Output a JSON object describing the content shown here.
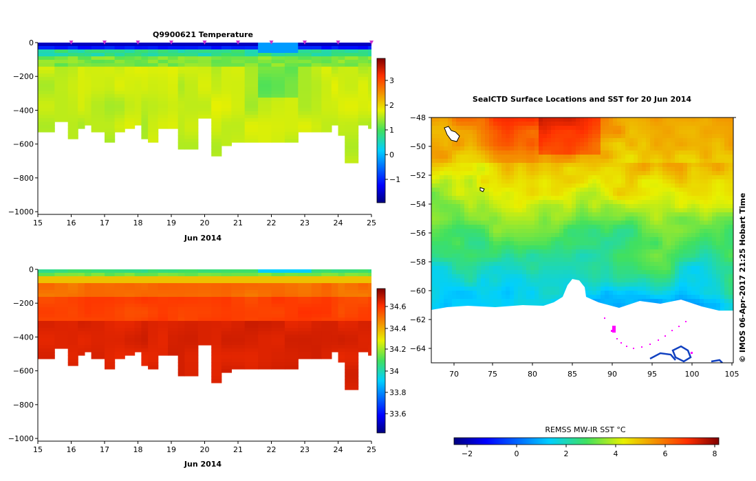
{
  "chart_data": [
    {
      "type": "heatmap",
      "title": "Q9900621  Temperature",
      "xlabel": "Jun 2014",
      "x_ticks": [
        "15",
        "16",
        "17",
        "18",
        "19",
        "20",
        "21",
        "22",
        "23",
        "24",
        "25"
      ],
      "y_ticks": [
        "0",
        "−200",
        "−400",
        "−600",
        "−800",
        "−1000"
      ],
      "xlim": [
        15,
        25
      ],
      "ylim": [
        -1000,
        0
      ],
      "profile_days": [
        15.1,
        15.5,
        15.9,
        16.2,
        16.4,
        16.6,
        17.0,
        17.3,
        17.6,
        17.9,
        18.1,
        18.3,
        18.6,
        18.9,
        19.2,
        19.4,
        19.8,
        20.2,
        20.5,
        20.8,
        21.2,
        21.6,
        22.0,
        22.4,
        22.8,
        23.2,
        23.5,
        23.8,
        24.0,
        24.2,
        24.6,
        24.9
      ],
      "max_depth_m": [
        510,
        460,
        545,
        500,
        475,
        520,
        565,
        505,
        500,
        480,
        555,
        575,
        500,
        490,
        615,
        620,
        440,
        655,
        600,
        575,
        575,
        575,
        575,
        575,
        515,
        510,
        520,
        470,
        540,
        700,
        475,
        500
      ],
      "surface_markers_days": [
        16,
        17,
        18,
        19,
        20,
        21,
        22,
        23,
        24,
        25
      ],
      "colorbar": {
        "ticks": [
          "3",
          "2",
          "1",
          "0",
          "−1"
        ],
        "min": -1.8,
        "max": 3.9
      }
    },
    {
      "type": "heatmap",
      "title": "",
      "xlabel": "Jun 2014",
      "x_ticks": [
        "15",
        "16",
        "17",
        "18",
        "19",
        "20",
        "21",
        "22",
        "23",
        "24",
        "25"
      ],
      "y_ticks": [
        "0",
        "−200",
        "−400",
        "−600",
        "−800",
        "−1000"
      ],
      "xlim": [
        15,
        25
      ],
      "ylim": [
        -1000,
        0
      ],
      "colorbar": {
        "ticks": [
          "34.6",
          "34.4",
          "34.2",
          "34",
          "33.8",
          "33.6"
        ],
        "min": 33.45,
        "max": 34.75
      }
    },
    {
      "type": "heatmap",
      "title": "SealCTD Surface Locations and SST for 20 Jun 2014",
      "x_ticks": [
        "70",
        "75",
        "80",
        "85",
        "90",
        "95",
        "100",
        "105"
      ],
      "y_ticks": [
        "−48",
        "−50",
        "−52",
        "−54",
        "−56",
        "−58",
        "−60",
        "−62",
        "−64"
      ],
      "xlim": [
        67,
        105
      ],
      "ylim": [
        -65,
        -48
      ],
      "colorbar": {
        "title": "REMSS MW-IR SST °C",
        "ticks": [
          "−2",
          "0",
          "2",
          "4",
          "6",
          "8"
        ],
        "min": -2.6,
        "max": 8.3
      }
    }
  ],
  "credit": "©  IMOS 06-Apr-2017 21:25 Hobart Time"
}
